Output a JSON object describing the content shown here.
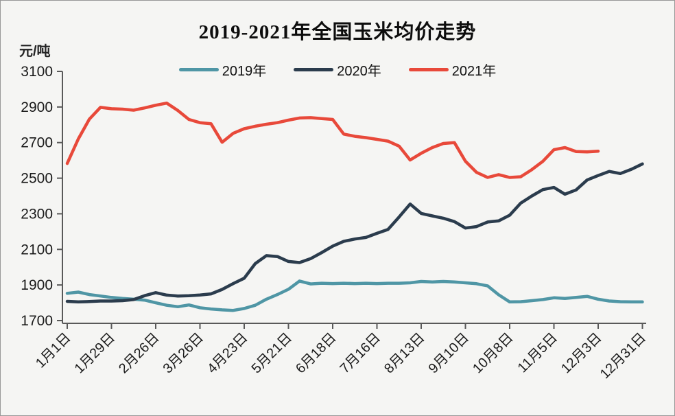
{
  "window": {
    "background": "#f5f5f3",
    "border_color": "#979797"
  },
  "title": "2019-2021年全国玉米均价走势",
  "unit_label": "元/吨",
  "legend": [
    {
      "label": "2019年",
      "color": "#4f96a5"
    },
    {
      "label": "2020年",
      "color": "#2b3c4d"
    },
    {
      "label": "2021年",
      "color": "#e8493a"
    }
  ],
  "axis": {
    "line_color": "#595959",
    "text_color": "#1a1a1a"
  },
  "chart_data": {
    "type": "line",
    "title": "2019-2021年全国玉米均价走势",
    "xlabel": "",
    "ylabel": "元/吨",
    "ylim": [
      1700,
      3100
    ],
    "y_ticks": [
      3100,
      2900,
      2700,
      2500,
      2300,
      2100,
      1900,
      1700
    ],
    "x_tick_labels": [
      "1月1日",
      "1月29日",
      "2月26日",
      "3月26日",
      "4月23日",
      "5月21日",
      "6月18日",
      "7月16日",
      "8月13日",
      "9月10日",
      "10月8日",
      "11月5日",
      "12月3日",
      "12月31日"
    ],
    "x_tick_day_offsets": [
      0,
      28,
      56,
      84,
      112,
      140,
      168,
      196,
      224,
      252,
      280,
      308,
      336,
      364
    ],
    "grid": false,
    "legend_position": "top-center",
    "point_interval_days": 7,
    "series": [
      {
        "name": "2019年",
        "color": "#4f96a5",
        "start_day": 0,
        "values": [
          1853,
          1860,
          1846,
          1838,
          1830,
          1824,
          1820,
          1815,
          1800,
          1786,
          1778,
          1788,
          1772,
          1765,
          1760,
          1757,
          1768,
          1786,
          1820,
          1846,
          1876,
          1922,
          1906,
          1910,
          1908,
          1910,
          1908,
          1910,
          1908,
          1910,
          1910,
          1912,
          1920,
          1917,
          1920,
          1917,
          1912,
          1907,
          1895,
          1845,
          1805,
          1806,
          1812,
          1818,
          1828,
          1824,
          1830,
          1836,
          1820,
          1810,
          1806,
          1805,
          1805
        ]
      },
      {
        "name": "2020年",
        "color": "#2b3c4d",
        "start_day": 0,
        "values": [
          1808,
          1805,
          1807,
          1810,
          1810,
          1812,
          1818,
          1840,
          1857,
          1843,
          1838,
          1840,
          1844,
          1850,
          1875,
          1908,
          1938,
          2020,
          2065,
          2060,
          2032,
          2026,
          2048,
          2082,
          2118,
          2145,
          2158,
          2167,
          2190,
          2212,
          2282,
          2355,
          2302,
          2288,
          2275,
          2256,
          2220,
          2228,
          2254,
          2260,
          2292,
          2360,
          2400,
          2436,
          2448,
          2410,
          2434,
          2490,
          2515,
          2538,
          2526,
          2550,
          2580
        ]
      },
      {
        "name": "2021年",
        "color": "#e8493a",
        "start_day": 0,
        "values": [
          2583,
          2720,
          2832,
          2898,
          2890,
          2888,
          2882,
          2895,
          2910,
          2922,
          2880,
          2830,
          2812,
          2806,
          2702,
          2752,
          2778,
          2792,
          2803,
          2812,
          2826,
          2838,
          2840,
          2835,
          2830,
          2748,
          2735,
          2728,
          2718,
          2708,
          2680,
          2602,
          2640,
          2672,
          2695,
          2700,
          2595,
          2533,
          2504,
          2520,
          2504,
          2508,
          2548,
          2595,
          2660,
          2672,
          2650,
          2648,
          2652
        ]
      }
    ]
  }
}
